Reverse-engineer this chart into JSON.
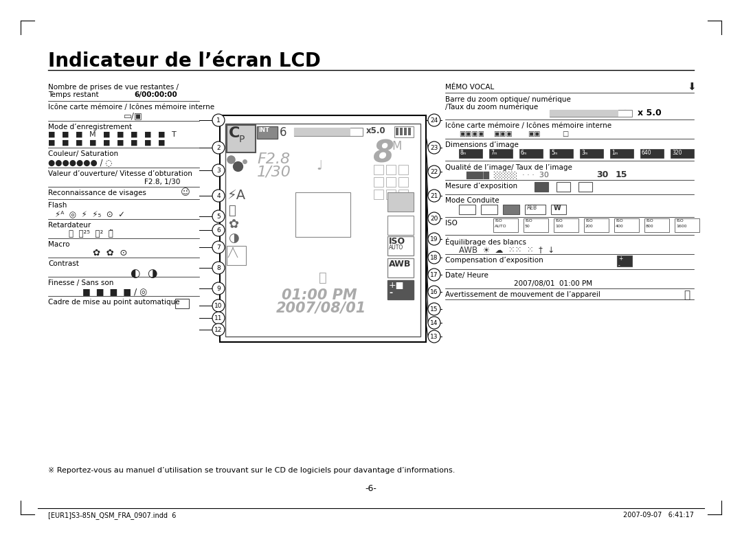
{
  "title": "Indicateur de l’écran LCD",
  "bg_color": "#ffffff",
  "text_color": "#000000",
  "title_fontsize": 20,
  "page_width": 10.8,
  "page_height": 7.79,
  "footer_note": "※ Reportez-vous au manuel d’utilisation se trouvant sur le CD de logiciels pour davantage d’informations.",
  "page_num": "-6-",
  "footer_left": "[EUR1]S3-85N_QSM_FRA_0907.indd  6",
  "footer_right": "2007-09-07   6:41:17"
}
